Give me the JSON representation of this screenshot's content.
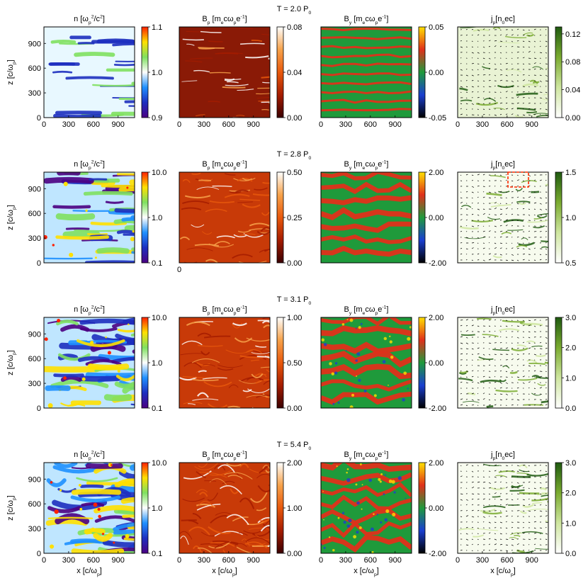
{
  "figure": {
    "x_axis_label": "x [c/ω",
    "x_axis_label_sub": "p",
    "x_axis_label_end": "]",
    "z_axis_label": "z [c/ω",
    "z_axis_label_sub": "p",
    "z_axis_label_end": "]",
    "panel_titles": {
      "n": {
        "main": "n [ω",
        "sub": "p",
        "sup": "2",
        "end": "/c",
        "sup2": "2",
        "close": "]"
      },
      "bp": {
        "main": "B",
        "sub": "p",
        "mid": " [m",
        "sub2": "e",
        "mid2": "cω",
        "sub3": "p",
        "mid3": "e",
        "sup": "-1",
        "close": "]"
      },
      "by": {
        "main": "B",
        "sub": "y",
        "mid": " [m",
        "sub2": "e",
        "mid2": "cω",
        "sub3": "p",
        "mid3": "e",
        "sup": "-1",
        "close": "]"
      },
      "jp": {
        "main": "j",
        "sub": "p",
        "mid": "[n",
        "sub2": "0",
        "end": "ec]"
      }
    },
    "stray_label": "0",
    "colors": {
      "n": [
        "#4b0082",
        "#1d2fbf",
        "#1e90ff",
        "#ffffff",
        "#7fe060",
        "#ffe000",
        "#ff2000"
      ],
      "bp": [
        "#3a0000",
        "#a51c00",
        "#e8580c",
        "#f7a24a",
        "#ffffff"
      ],
      "by": [
        "#000000",
        "#1a3fd0",
        "#1f9a3b",
        "#e0301a",
        "#ffe000"
      ],
      "jp": [
        "#ffffff",
        "#cfe6a0",
        "#7aab30",
        "#1f5a10"
      ],
      "roi_box": "#ff2a00"
    }
  },
  "chart_data": [
    {
      "type": "heatmap",
      "row_title": "T = 2.0 P",
      "row_title_sub": "0",
      "panels": [
        {
          "field": "n",
          "colorbar_ticks": [
            "1.1",
            "1.0",
            "0.9"
          ],
          "colorbar_range": [
            0.9,
            1.1
          ],
          "scale": "linear"
        },
        {
          "field": "B_p",
          "colorbar_ticks": [
            "0.08",
            "0.04",
            "0.00"
          ],
          "colorbar_range": [
            0.0,
            0.08
          ],
          "scale": "linear"
        },
        {
          "field": "B_y",
          "colorbar_ticks": [
            "0.05",
            "0.00",
            "-0.05"
          ],
          "colorbar_range": [
            -0.05,
            0.05
          ],
          "scale": "linear"
        },
        {
          "field": "j_p",
          "colorbar_ticks": [
            "0.12",
            "0.08",
            "0.04",
            "0.00"
          ],
          "colorbar_range": [
            0.0,
            0.13
          ],
          "scale": "linear"
        }
      ],
      "x_ticks": [
        "0",
        "300",
        "600",
        "900"
      ],
      "z_ticks": [
        "0",
        "300",
        "600",
        "900"
      ]
    },
    {
      "type": "heatmap",
      "row_title": "T = 2.8 P",
      "row_title_sub": "0",
      "panels": [
        {
          "field": "n",
          "colorbar_ticks": [
            "10.0",
            "1.0",
            "0.1"
          ],
          "colorbar_range": [
            0.1,
            10.0
          ],
          "scale": "log"
        },
        {
          "field": "B_p",
          "colorbar_ticks": [
            "0.50",
            "0.25",
            "0.00"
          ],
          "colorbar_range": [
            0.0,
            0.5
          ],
          "scale": "linear"
        },
        {
          "field": "B_y",
          "colorbar_ticks": [
            "2.00",
            "0.00",
            "-2.00"
          ],
          "colorbar_range": [
            -2.0,
            2.0
          ],
          "scale": "linear"
        },
        {
          "field": "j_p",
          "colorbar_ticks": [
            "1.5",
            "1.0",
            "0.5"
          ],
          "colorbar_range": [
            0.5,
            1.5
          ],
          "scale": "linear"
        }
      ],
      "x_ticks": [],
      "z_ticks": [
        "0",
        "300",
        "600",
        "900"
      ]
    },
    {
      "type": "heatmap",
      "row_title": "T = 3.1 P",
      "row_title_sub": "0",
      "panels": [
        {
          "field": "n",
          "colorbar_ticks": [
            "10.0",
            "1.0",
            "0.1"
          ],
          "colorbar_range": [
            0.1,
            10.0
          ],
          "scale": "log"
        },
        {
          "field": "B_p",
          "colorbar_ticks": [
            "1.00",
            "0.50",
            "0.00"
          ],
          "colorbar_range": [
            0.0,
            1.0
          ],
          "scale": "linear"
        },
        {
          "field": "B_y",
          "colorbar_ticks": [
            "2.00",
            "0.00",
            "-2.00"
          ],
          "colorbar_range": [
            -2.0,
            2.0
          ],
          "scale": "linear"
        },
        {
          "field": "j_p",
          "colorbar_ticks": [
            "3.0",
            "2.0",
            "1.0",
            "0.0"
          ],
          "colorbar_range": [
            0.0,
            3.0
          ],
          "scale": "linear"
        }
      ],
      "x_ticks": [],
      "z_ticks": [
        "0",
        "300",
        "600",
        "900"
      ]
    },
    {
      "type": "heatmap",
      "row_title": "T = 5.4 P",
      "row_title_sub": "0",
      "panels": [
        {
          "field": "n",
          "colorbar_ticks": [
            "10.0",
            "1.0",
            "0.1"
          ],
          "colorbar_range": [
            0.1,
            10.0
          ],
          "scale": "log"
        },
        {
          "field": "B_p",
          "colorbar_ticks": [
            "2.00",
            "1.00",
            "0.00"
          ],
          "colorbar_range": [
            0.0,
            2.0
          ],
          "scale": "linear"
        },
        {
          "field": "B_y",
          "colorbar_ticks": [
            "2.00",
            "0.00",
            "-2.00"
          ],
          "colorbar_range": [
            -2.0,
            2.0
          ],
          "scale": "linear"
        },
        {
          "field": "j_p",
          "colorbar_ticks": [
            "3.0",
            "2.0",
            "1.0",
            "0.0"
          ],
          "colorbar_range": [
            0.0,
            3.0
          ],
          "scale": "linear"
        }
      ],
      "x_ticks": [
        "0",
        "300",
        "600",
        "900"
      ],
      "z_ticks": [
        "0",
        "300",
        "600",
        "900"
      ]
    }
  ]
}
